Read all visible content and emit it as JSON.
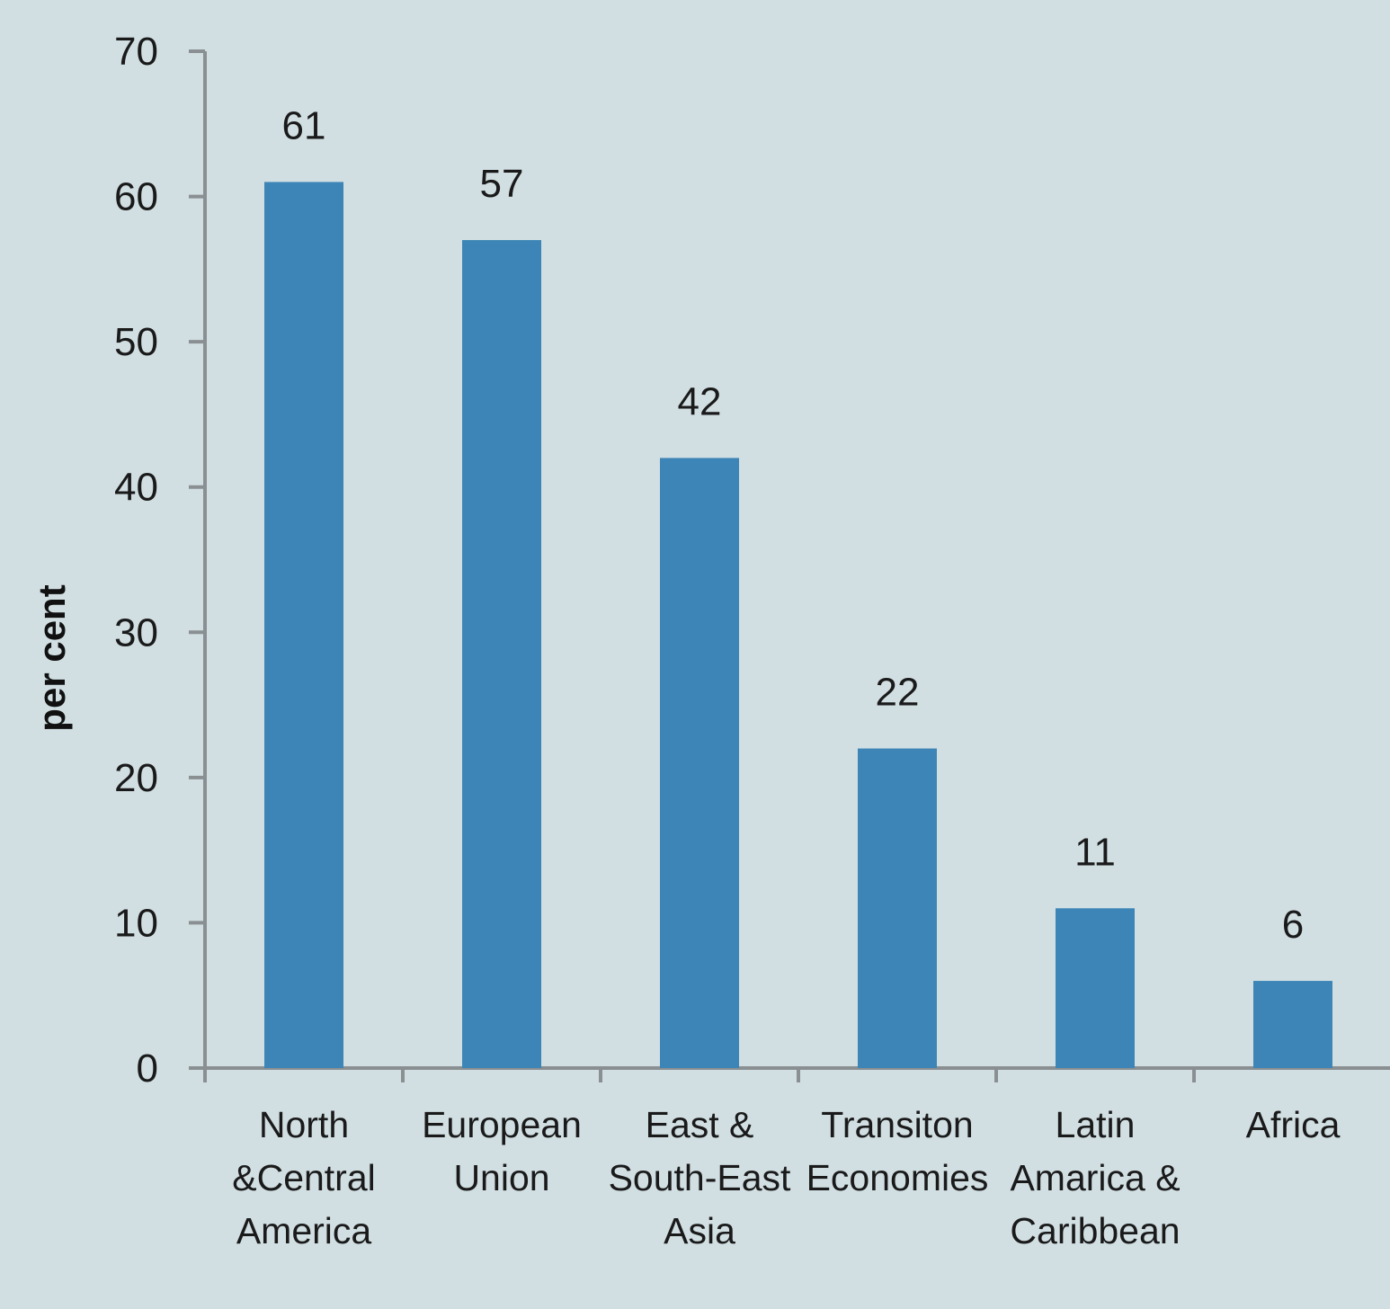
{
  "chart_data": {
    "type": "bar",
    "ylabel": "per cent",
    "xlabel": "",
    "ylim": [
      0,
      70
    ],
    "yticks": [
      0,
      10,
      20,
      30,
      40,
      50,
      60,
      70
    ],
    "categories": [
      [
        "North",
        "&Central",
        "America"
      ],
      [
        "European",
        "Union"
      ],
      [
        "East &",
        "South-East",
        "Asia"
      ],
      [
        "Transiton",
        "Economies"
      ],
      [
        "Latin",
        "Amarica &",
        "Caribbean"
      ],
      [
        "Africa"
      ]
    ],
    "values": [
      61,
      57,
      42,
      22,
      11,
      6
    ],
    "data_labels": [
      "61",
      "57",
      "42",
      "22",
      "11",
      "6"
    ],
    "colors": {
      "bar": "#3d85b6",
      "axis": "#8a8f92",
      "background": "#d1dfe3"
    },
    "grid": false,
    "legend": "none"
  }
}
